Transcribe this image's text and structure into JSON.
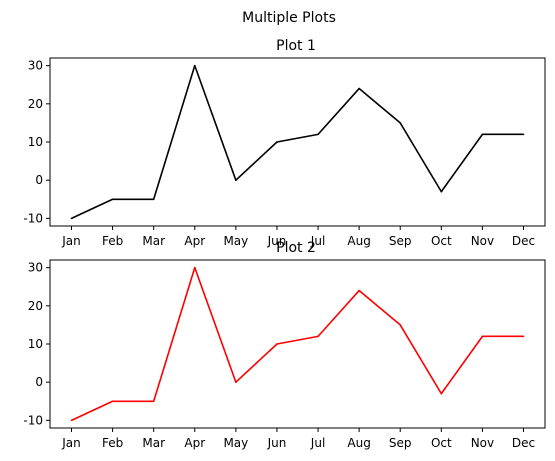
{
  "figure": {
    "title": "Multiple Plots"
  },
  "chart_data": [
    {
      "type": "line",
      "title": "Plot 1",
      "categories": [
        "Jan",
        "Feb",
        "Mar",
        "Apr",
        "May",
        "Jun",
        "Jul",
        "Aug",
        "Sep",
        "Oct",
        "Nov",
        "Dec"
      ],
      "values": [
        -10,
        -5,
        -5,
        30,
        0,
        10,
        12,
        24,
        15,
        -3,
        12,
        12
      ],
      "color": "#000000",
      "yticks": [
        -10,
        0,
        10,
        20,
        30
      ],
      "ylim": [
        -12,
        32
      ],
      "grid": false
    },
    {
      "type": "line",
      "title": "Plot 2",
      "categories": [
        "Jan",
        "Feb",
        "Mar",
        "Apr",
        "May",
        "Jun",
        "Jul",
        "Aug",
        "Sep",
        "Oct",
        "Nov",
        "Dec"
      ],
      "values": [
        -10,
        -5,
        -5,
        30,
        0,
        10,
        12,
        24,
        15,
        -3,
        12,
        12
      ],
      "color": "#ff0000",
      "yticks": [
        -10,
        0,
        10,
        20,
        30
      ],
      "ylim": [
        -12,
        32
      ],
      "grid": false
    }
  ]
}
